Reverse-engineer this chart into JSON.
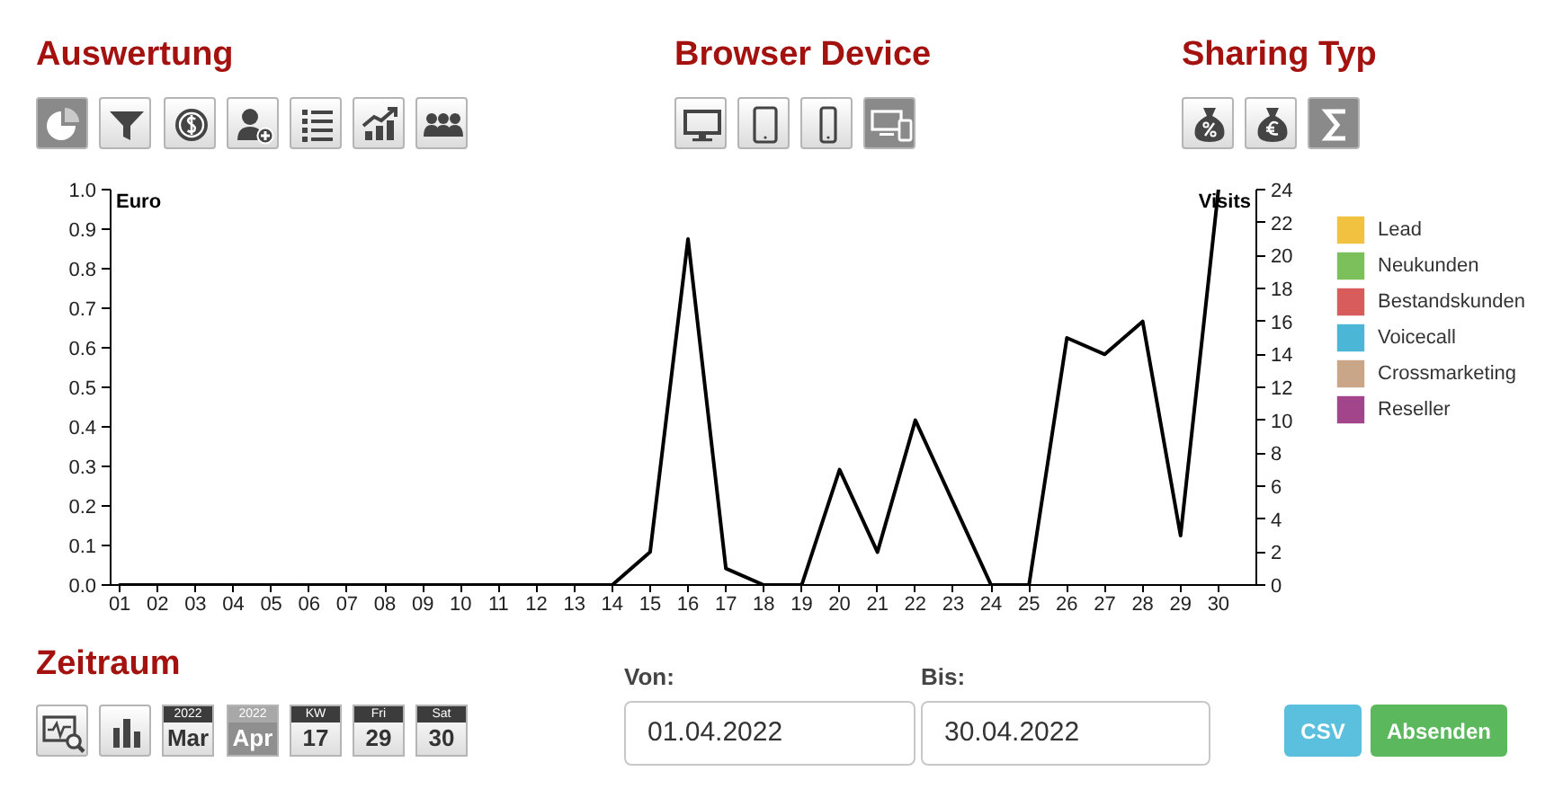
{
  "chart_data": {
    "type": "line",
    "categories": [
      "01",
      "02",
      "03",
      "04",
      "05",
      "06",
      "07",
      "08",
      "09",
      "10",
      "11",
      "12",
      "13",
      "14",
      "15",
      "16",
      "17",
      "18",
      "19",
      "20",
      "21",
      "22",
      "23",
      "24",
      "25",
      "26",
      "27",
      "28",
      "29",
      "30"
    ],
    "ylabel": "Euro",
    "y2label": "Visits",
    "ylim": [
      0,
      1
    ],
    "yticks": [
      {
        "value": 0,
        "label": "0.0"
      },
      0.1,
      0.2,
      0.3,
      0.4,
      0.5,
      0.6,
      0.7,
      0.8,
      0.9,
      {
        "value": 1,
        "label": "1.0"
      }
    ],
    "y2lim": [
      0,
      24
    ],
    "y2ticks": [
      0,
      2,
      4,
      6,
      8,
      10,
      12,
      14,
      16,
      18,
      20,
      22,
      24
    ],
    "grid": false,
    "legend": "right",
    "series": [
      {
        "axis": "y2",
        "color": "#000000",
        "values": [
          0,
          0,
          0,
          0,
          0,
          0,
          0,
          0,
          0,
          0,
          0,
          0,
          0,
          0,
          2,
          21,
          1,
          0,
          0,
          7,
          2,
          10,
          5,
          0,
          0,
          15,
          14,
          16,
          3,
          24
        ]
      },
      {
        "type": "area",
        "name": "Lead",
        "color": "#f0c240",
        "values": [
          null,
          null,
          null,
          null,
          null,
          null,
          null,
          null,
          null,
          null,
          null,
          null,
          null,
          null,
          null,
          null,
          null,
          null,
          null,
          null,
          null,
          null,
          null,
          null,
          null,
          null,
          null,
          null,
          null,
          null
        ]
      },
      {
        "type": "area",
        "name": "Neukunden",
        "color": "#7cc05c",
        "values": [
          null,
          null,
          null,
          null,
          null,
          null,
          null,
          null,
          null,
          null,
          null,
          null,
          null,
          null,
          null,
          null,
          null,
          null,
          null,
          null,
          null,
          null,
          null,
          null,
          null,
          null,
          null,
          null,
          null,
          null
        ]
      },
      {
        "type": "area",
        "name": "Bestandskunden",
        "color": "#d95c5c",
        "values": [
          null,
          null,
          null,
          null,
          null,
          null,
          null,
          null,
          null,
          null,
          null,
          null,
          null,
          null,
          null,
          null,
          null,
          null,
          null,
          null,
          null,
          null,
          null,
          null,
          null,
          null,
          null,
          null,
          null,
          null
        ]
      },
      {
        "type": "area",
        "name": "Voicecall",
        "color": "#4bb6d6",
        "values": [
          null,
          null,
          null,
          null,
          null,
          null,
          null,
          null,
          null,
          null,
          null,
          null,
          null,
          null,
          null,
          null,
          null,
          null,
          null,
          null,
          null,
          null,
          null,
          null,
          null,
          null,
          null,
          null,
          null,
          null
        ]
      },
      {
        "type": "area",
        "name": "Crossmarketing",
        "color": "#c9a688",
        "values": [
          null,
          null,
          null,
          null,
          null,
          null,
          null,
          null,
          null,
          null,
          null,
          null,
          null,
          null,
          null,
          null,
          null,
          null,
          null,
          null,
          null,
          null,
          null,
          null,
          null,
          null,
          null,
          null,
          null,
          null
        ]
      },
      {
        "type": "area",
        "name": "Reseller",
        "color": "#a3458a",
        "values": [
          null,
          null,
          null,
          null,
          null,
          null,
          null,
          null,
          null,
          null,
          null,
          null,
          null,
          null,
          null,
          null,
          null,
          null,
          null,
          null,
          null,
          null,
          null,
          null,
          null,
          null,
          null,
          null,
          null,
          null
        ]
      }
    ],
    "annotations": [
      "Auswertung",
      "Browser Device",
      "Sharing Typ",
      "Zeitraum",
      "2022",
      "Mar",
      "2022",
      "Apr",
      "KW",
      "17",
      "Fri",
      "29",
      "Sat",
      "30",
      "Von:",
      "01.04.2022",
      "Bis:",
      "30.04.2022",
      "CSV",
      "Absenden"
    ]
  }
}
